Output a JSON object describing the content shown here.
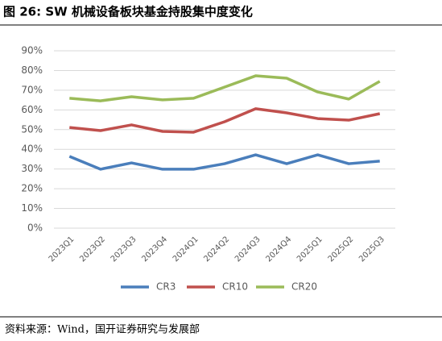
{
  "chart_data": {
    "type": "line",
    "title": "图 26:  SW 机械设备板块基金持股集中度变化",
    "source": "资料来源：Wind，国开证券研究与发展部",
    "categories": [
      "2023Q1",
      "2023Q2",
      "2023Q3",
      "2023Q4",
      "2024Q1",
      "2024Q2",
      "2024Q3",
      "2024Q4",
      "2025Q1",
      "2025Q2",
      "2025Q3"
    ],
    "series": [
      {
        "name": "CR3",
        "color": "#4a7ebb",
        "values": [
          36.4,
          29.9,
          33.1,
          29.9,
          29.9,
          32.7,
          37.2,
          32.7,
          37.2,
          32.7,
          34.0
        ]
      },
      {
        "name": "CR10",
        "color": "#c0504d",
        "values": [
          51.1,
          49.5,
          52.4,
          49.1,
          48.7,
          54.0,
          60.6,
          58.5,
          55.6,
          54.8,
          58.1
        ]
      },
      {
        "name": "CR20",
        "color": "#9bbb59",
        "values": [
          65.9,
          64.6,
          66.7,
          65.1,
          65.9,
          71.6,
          77.3,
          76.1,
          69.1,
          65.5,
          74.5
        ]
      }
    ],
    "ylim": [
      0,
      90
    ],
    "yticks": [
      {
        "value": 0,
        "label": "0%"
      },
      {
        "value": 10,
        "label": "10%"
      },
      {
        "value": 20,
        "label": "20%"
      },
      {
        "value": 30,
        "label": "30%"
      },
      {
        "value": 40,
        "label": "40%"
      },
      {
        "value": 50,
        "label": "50%"
      },
      {
        "value": 60,
        "label": "60%"
      },
      {
        "value": 70,
        "label": "70%"
      },
      {
        "value": 80,
        "label": "80%"
      },
      {
        "value": 90,
        "label": "90%"
      }
    ],
    "grid": true
  }
}
